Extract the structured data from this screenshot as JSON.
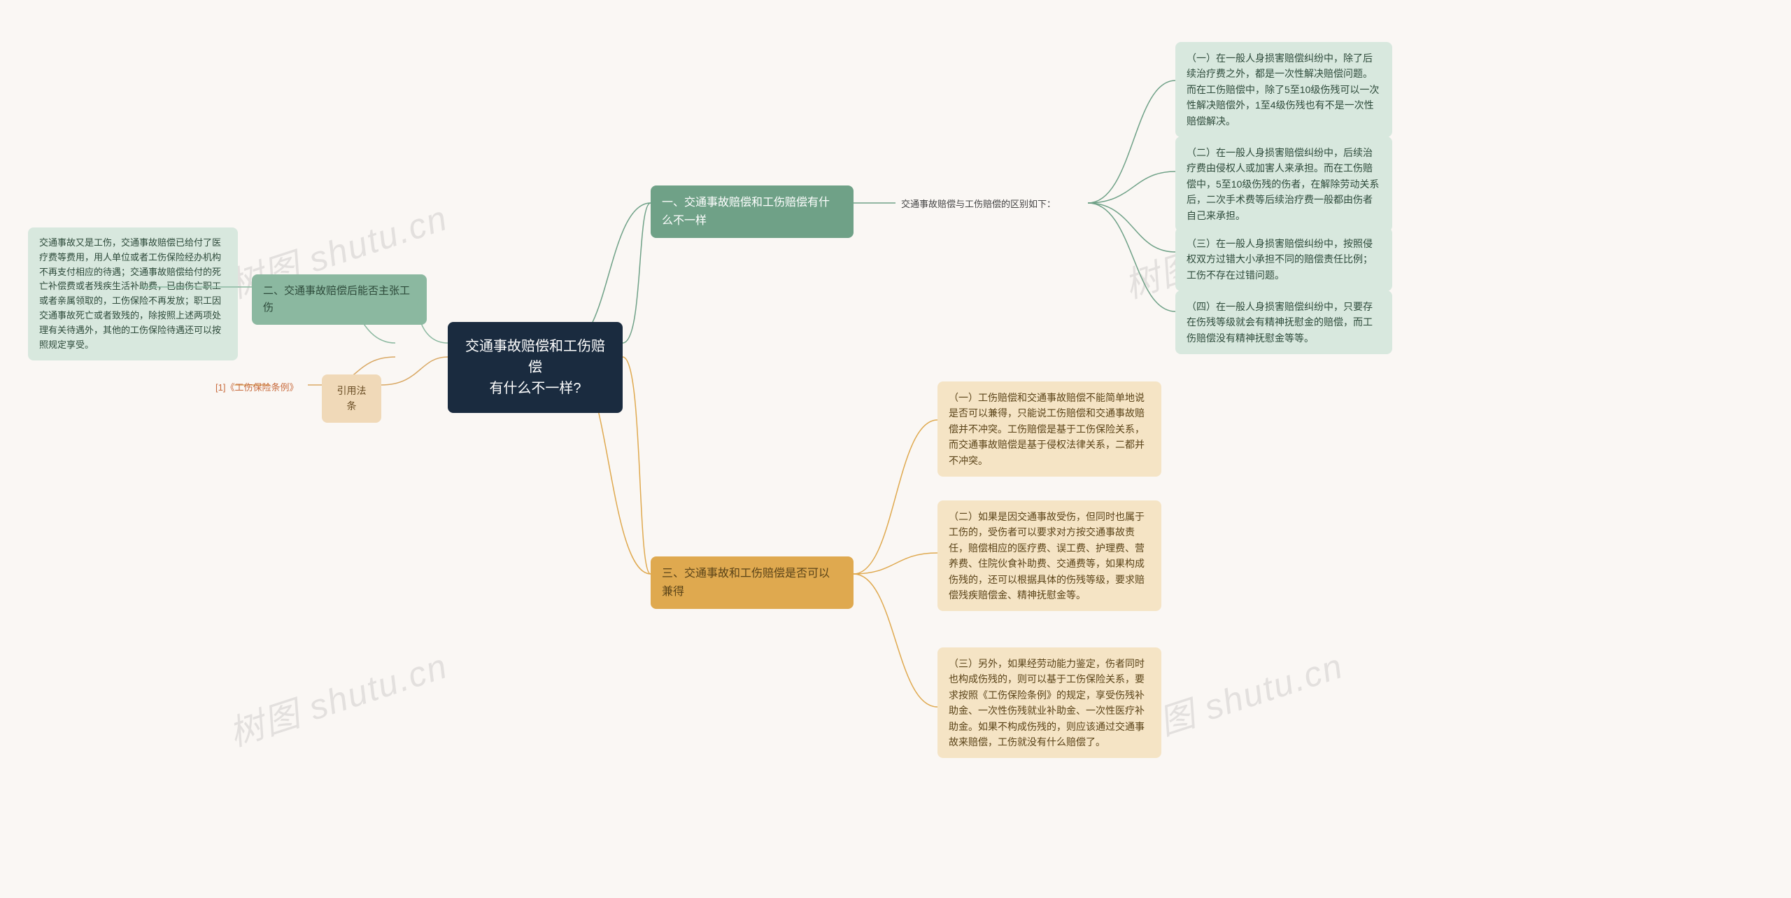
{
  "background_color": "#faf7f4",
  "watermark_text": "树图 shutu.cn",
  "watermark_color": "rgba(120,120,120,0.18)",
  "watermark_fontsize": 50,
  "root": {
    "text": "交通事故赔偿和工伤赔偿\n有什么不一样?",
    "bg": "#1a2b3f",
    "fg": "#ffffff"
  },
  "right": {
    "section1": {
      "title": "一、交通事故赔偿和工伤赔偿有什\n么不一样",
      "bg": "#6fa187",
      "sub": {
        "text": "交通事故赔偿与工伤赔偿的区别如下：",
        "bg": "transparent",
        "leaves": [
          {
            "text": "（一）在一般人身损害赔偿纠纷中，除了后续治疗费之外，都是一次性解决赔偿问题。而在工伤赔偿中，除了5至10级伤残可以一次性解决赔偿外，1至4级伤残也有不是一次性赔偿解决。",
            "bg": "#d8e8de"
          },
          {
            "text": "（二）在一般人身损害赔偿纠纷中，后续治疗费由侵权人或加害人来承担。而在工伤赔偿中，5至10级伤残的伤者，在解除劳动关系后，二次手术费等后续治疗费一般都由伤者自己来承担。",
            "bg": "#d8e8de"
          },
          {
            "text": "（三）在一般人身损害赔偿纠纷中，按照侵权双方过错大小承担不同的赔偿责任比例；工伤不存在过错问题。",
            "bg": "#d8e8de"
          },
          {
            "text": "（四）在一般人身损害赔偿纠纷中，只要存在伤残等级就会有精神抚慰金的赔偿，而工伤赔偿没有精神抚慰金等等。",
            "bg": "#d8e8de"
          }
        ]
      }
    },
    "section3": {
      "title": "三、交通事故和工伤赔偿是否可以\n兼得",
      "bg": "#dfa94f",
      "leaves": [
        {
          "text": "（一）工伤赔偿和交通事故赔偿不能简单地说是否可以兼得，只能说工伤赔偿和交通事故赔偿并不冲突。工伤赔偿是基于工伤保险关系，而交通事故赔偿是基于侵权法律关系，二都并不冲突。",
          "bg": "#f5e4c5"
        },
        {
          "text": "（二）如果是因交通事故受伤，但同时也属于工伤的，受伤者可以要求对方按交通事故责任，赔偿相应的医疗费、误工费、护理费、营养费、住院伙食补助费、交通费等，如果构成伤残的，还可以根据具体的伤残等级，要求赔偿残疾赔偿金、精神抚慰金等。",
          "bg": "#f5e4c5"
        },
        {
          "text": "（三）另外，如果经劳动能力鉴定，伤者同时也构成伤残的，则可以基于工伤保险关系，要求按照《工伤保险条例》的规定，享受伤残补助金、一次性伤残就业补助金、一次性医疗补助金。如果不构成伤残的，则应该通过交通事故来赔偿，工伤就没有什么赔偿了。",
          "bg": "#f5e4c5"
        }
      ]
    }
  },
  "left": {
    "section2": {
      "title": "二、交通事故赔偿后能否主张工伤",
      "bg": "#8bb8a0",
      "leaf": {
        "text": "交通事故又是工伤，交通事故赔偿已给付了医疗费等费用，用人单位或者工伤保险经办机构不再支付相应的待遇；交通事故赔偿给付的死亡补偿费或者残疾生活补助费，已由伤亡职工或者亲属领取的，工伤保险不再发放；职工因交通事故死亡或者致残的，除按照上述两项处理有关待遇外，其他的工伤保险待遇还可以按照规定享受。",
        "bg": "#d8e8de"
      }
    },
    "citation": {
      "title": "引用法条",
      "bg": "#f0d9b8",
      "leaf": {
        "text": "[1]《工伤保险条例》",
        "color": "#c86b3d"
      }
    }
  },
  "connector_colors": {
    "green": "#6fa187",
    "yellow": "#dfa94f",
    "green_light": "#8bb8a0",
    "orange": "#d9a864"
  }
}
